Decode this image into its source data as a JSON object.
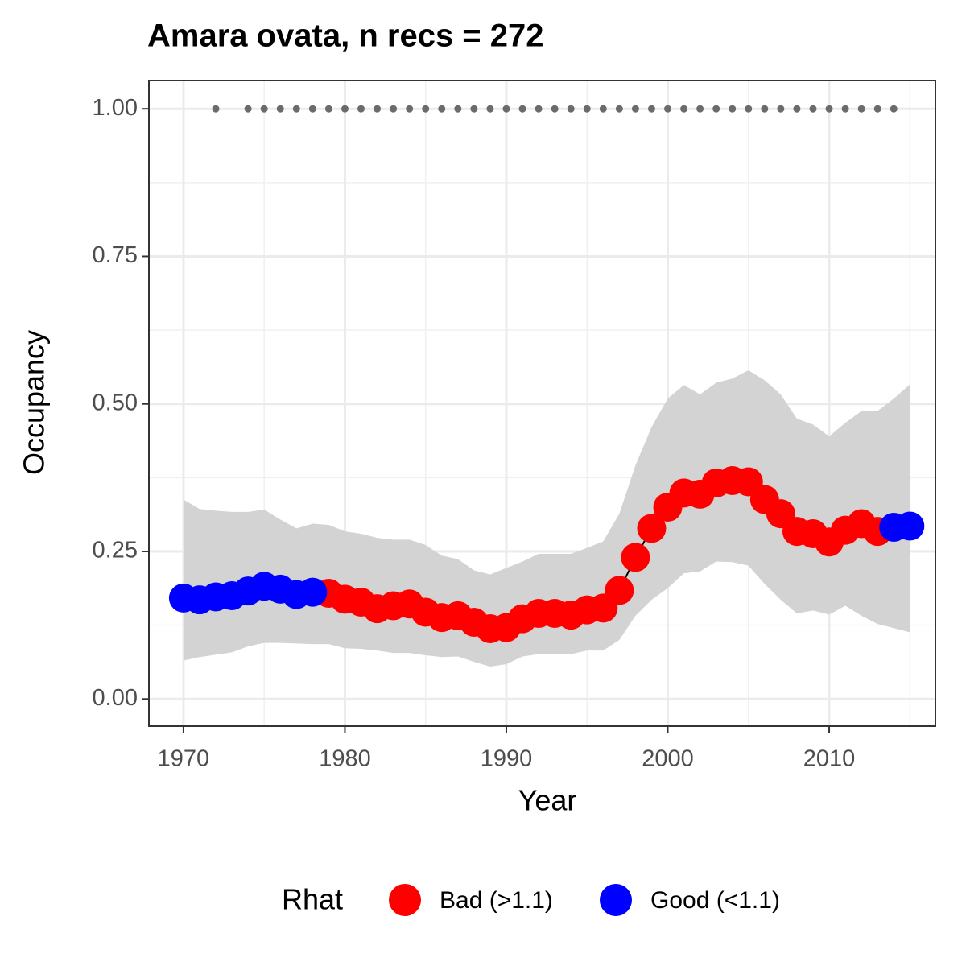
{
  "chart_data": {
    "type": "line",
    "title": "Amara ovata, n recs = 272",
    "x_label": "Year",
    "y_label": "Occupancy",
    "x": [
      1970,
      1971,
      1972,
      1973,
      1974,
      1975,
      1976,
      1977,
      1978,
      1979,
      1980,
      1981,
      1982,
      1983,
      1984,
      1985,
      1986,
      1987,
      1988,
      1989,
      1990,
      1991,
      1992,
      1993,
      1994,
      1995,
      1996,
      1997,
      1998,
      1999,
      2000,
      2001,
      2002,
      2003,
      2004,
      2005,
      2006,
      2007,
      2008,
      2009,
      2010,
      2011,
      2012,
      2013,
      2014,
      2015
    ],
    "ci_upper": [
      0.338,
      0.322,
      0.319,
      0.317,
      0.317,
      0.321,
      0.304,
      0.289,
      0.297,
      0.295,
      0.284,
      0.28,
      0.273,
      0.27,
      0.27,
      0.261,
      0.243,
      0.237,
      0.218,
      0.211,
      0.222,
      0.233,
      0.246,
      0.246,
      0.246,
      0.256,
      0.267,
      0.314,
      0.396,
      0.461,
      0.509,
      0.532,
      0.516,
      0.536,
      0.543,
      0.557,
      0.54,
      0.516,
      0.475,
      0.465,
      0.445,
      0.468,
      0.488,
      0.488,
      0.509,
      0.533
    ],
    "ci_lower": [
      0.065,
      0.071,
      0.075,
      0.079,
      0.089,
      0.095,
      0.095,
      0.094,
      0.093,
      0.093,
      0.086,
      0.085,
      0.082,
      0.078,
      0.078,
      0.074,
      0.071,
      0.072,
      0.063,
      0.055,
      0.059,
      0.072,
      0.076,
      0.076,
      0.076,
      0.082,
      0.082,
      0.1,
      0.141,
      0.168,
      0.188,
      0.213,
      0.216,
      0.233,
      0.232,
      0.226,
      0.195,
      0.168,
      0.145,
      0.15,
      0.143,
      0.158,
      0.141,
      0.127,
      0.12,
      0.113
    ],
    "ci_color": "#d3d3d3",
    "legend_title": "Rhat",
    "series": [
      {
        "name": "Bad (>1.1)",
        "color": "#ff0000",
        "values": [
          null,
          null,
          null,
          null,
          null,
          null,
          null,
          null,
          null,
          0.179,
          0.169,
          0.164,
          0.153,
          0.158,
          0.161,
          0.147,
          0.138,
          0.141,
          0.13,
          0.119,
          0.121,
          0.136,
          0.145,
          0.145,
          0.142,
          0.151,
          0.154,
          0.184,
          0.24,
          0.289,
          0.325,
          0.349,
          0.347,
          0.366,
          0.37,
          0.368,
          0.338,
          0.314,
          0.284,
          0.28,
          0.266,
          0.286,
          0.297,
          0.284,
          null,
          null
        ]
      },
      {
        "name": "Good (<1.1)",
        "color": "#0000ff",
        "values": [
          0.171,
          0.168,
          0.173,
          0.175,
          0.183,
          0.191,
          0.186,
          0.177,
          0.181,
          null,
          null,
          null,
          null,
          null,
          null,
          null,
          null,
          null,
          null,
          null,
          null,
          null,
          null,
          null,
          null,
          null,
          null,
          null,
          null,
          null,
          null,
          null,
          null,
          null,
          null,
          null,
          null,
          null,
          null,
          null,
          null,
          null,
          null,
          null,
          0.291,
          0.293
        ]
      }
    ],
    "records": {
      "color": "#6b6b6b",
      "x": [
        1972,
        1974,
        1975,
        1976,
        1977,
        1978,
        1979,
        1980,
        1981,
        1982,
        1983,
        1984,
        1985,
        1986,
        1987,
        1988,
        1989,
        1990,
        1991,
        1992,
        1993,
        1994,
        1995,
        1996,
        1997,
        1998,
        1999,
        2000,
        2001,
        2002,
        2003,
        2004,
        2005,
        2006,
        2007,
        2008,
        2009,
        2010,
        2011,
        2012,
        2013,
        2014
      ],
      "values": [
        1,
        1,
        1,
        1,
        1,
        1,
        1,
        1,
        1,
        1,
        1,
        1,
        1,
        1,
        1,
        1,
        1,
        1,
        1,
        1,
        1,
        1,
        1,
        1,
        1,
        1,
        1,
        1,
        1,
        1,
        1,
        1,
        1,
        1,
        1,
        1,
        1,
        1,
        1,
        1,
        1,
        1
      ]
    },
    "xlim": [
      1967.86,
      2016.58
    ],
    "ylim": [
      -0.046,
      1.048
    ],
    "xticks": [
      1970,
      1980,
      1990,
      2000,
      2010
    ],
    "yticks": [
      {
        "value": 0,
        "label": "0.00"
      },
      {
        "value": 0.25,
        "label": "0.25"
      },
      {
        "value": 0.5,
        "label": "0.50"
      },
      {
        "value": 0.75,
        "label": "0.75"
      },
      {
        "value": 1,
        "label": "1.00"
      }
    ],
    "minor_xticks": [
      1975,
      1985,
      1995,
      2005,
      2015
    ],
    "minor_yticks": [
      0.125,
      0.375,
      0.625,
      0.875
    ],
    "grid": true,
    "legend_position": "bottom"
  }
}
